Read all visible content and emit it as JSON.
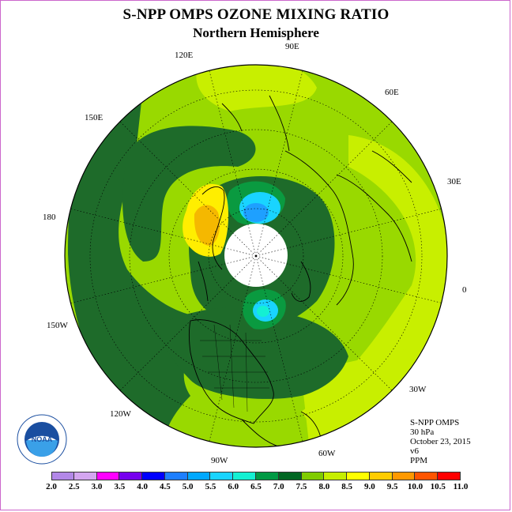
{
  "title": "S-NPP OMPS OZONE MIXING RATIO",
  "subtitle": "Northern Hemisphere",
  "lon_labels": {
    "e90": "90E",
    "e60": "60E",
    "e30": "30E",
    "zero": "0",
    "w30": "30W",
    "w60": "60W",
    "w90": "90W",
    "w120": "120W",
    "w150": "150W",
    "d180": "180",
    "e150": "150E",
    "e120": "120E"
  },
  "info": {
    "instrument": "S-NPP OMPS",
    "level": "30 hPa",
    "date": "October 23, 2015",
    "version": "v6",
    "units": "PPM"
  },
  "legend": {
    "ticks": [
      "2.0",
      "2.5",
      "3.0",
      "3.5",
      "4.0",
      "4.5",
      "5.0",
      "5.5",
      "6.0",
      "6.5",
      "7.0",
      "7.5",
      "8.0",
      "8.5",
      "9.0",
      "9.5",
      "10.0",
      "10.5",
      "11.0"
    ],
    "colors": [
      "#b388e8",
      "#d4a6f0",
      "#ff00ff",
      "#7700ee",
      "#0000ff",
      "#1e7fff",
      "#00a8ff",
      "#19d4ff",
      "#14f0d2",
      "#009944",
      "#006622",
      "#80cc00",
      "#c6ee00",
      "#ffff00",
      "#ffcc00",
      "#ff9900",
      "#ff5500",
      "#ff0000",
      "#8a4a2a"
    ]
  },
  "logo": {
    "text": "NOAA",
    "ring_text": "NATIONAL OCEANIC AND ATMOSPHERIC ADMINISTRATION · U.S. DEPARTMENT OF COMMERCE"
  },
  "colors": {
    "bg_level_7_5": "#8fd400",
    "level_8": "#c6ee00",
    "level_6_5": "#1e6b2a",
    "level_7": "#0a8a3a",
    "level_8_5": "#ffee00",
    "level_9": "#f5b800",
    "level_5_5": "#19d4ff",
    "level_5": "#1ea0ff"
  }
}
